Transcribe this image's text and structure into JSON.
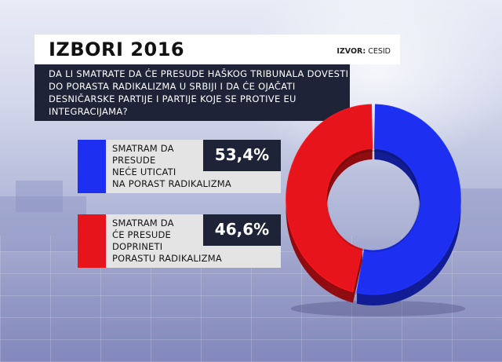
{
  "header": {
    "title": "IZBORI 2016",
    "source_label": "IZVOR:",
    "source_value": "CESID"
  },
  "question": "DA LI SMATRATE DA ĆE PRESUDE HAŠKOG TRIBUNALA DOVESTI DO PORASTA RADIKALIZMA U SRBIJI I DA ĆE OJAČATI DESNIČARSKE PARTIJE I PARTIJE KOJE SE PROTIVE EU INTEGRACIJAMA?",
  "legend": [
    {
      "line1": "SMATRAM DA",
      "line2": "PRESUDE",
      "line3": "NEĆE UTICATI",
      "line4": "NA PORAST RADIKALIZMA",
      "value_label": "53,4%",
      "color": "#1d2ff0"
    },
    {
      "line1": "SMATRAM DA",
      "line2": "ĆE PRESUDE",
      "line3": "DOPRINETI",
      "line4": "PORASTU RADIKALIZMA",
      "value_label": "46,6%",
      "color": "#e8141c"
    }
  ],
  "chart_data": {
    "type": "pie",
    "variant": "donut",
    "categories": [
      "SMATRAM DA PRESUDE NEĆE UTICATI NA PORAST RADIKALIZMA",
      "SMATRAM DA ĆE PRESUDE DOPRINETI PORASTU RADIKALIZMA"
    ],
    "values": [
      53.4,
      46.6
    ],
    "unit": "%",
    "colors": [
      "#1d2ff0",
      "#e8141c"
    ],
    "title": "IZBORI 2016",
    "legend_position": "left"
  }
}
